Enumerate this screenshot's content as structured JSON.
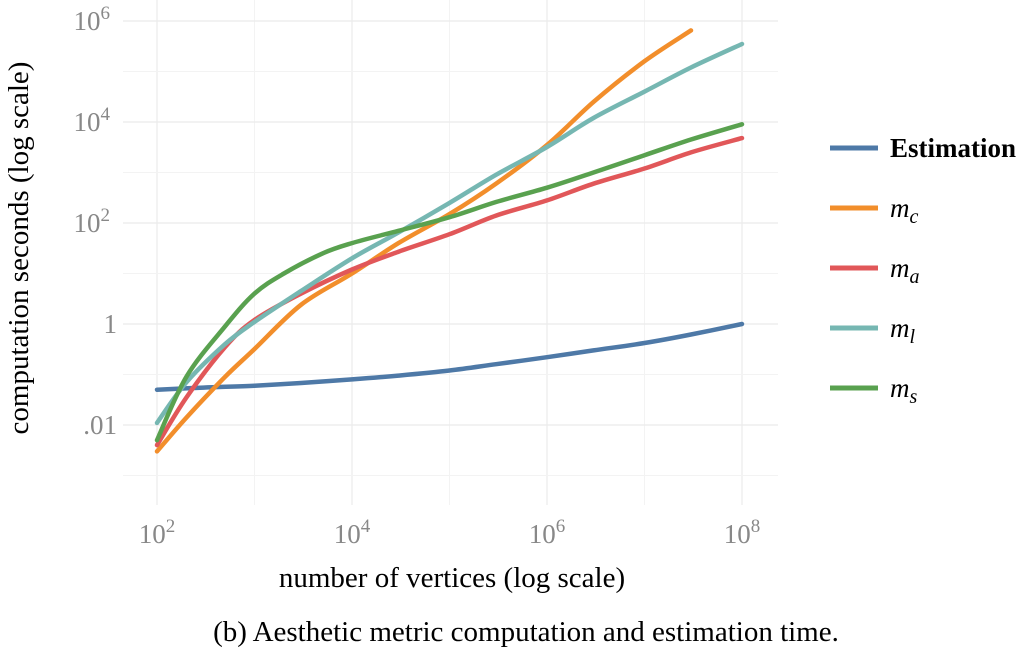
{
  "chart_data": {
    "type": "line",
    "xlabel": "number of vertices (log scale)",
    "ylabel": "computation seconds (log scale)",
    "caption": "(b) Aesthetic metric computation and estimation time.",
    "x_scale": "log",
    "y_scale": "log",
    "xlim": [
      100,
      100000000
    ],
    "ylim": [
      0.0001,
      1000000
    ],
    "grid": true,
    "legend_position": "right",
    "x_ticks": [
      {
        "value": 100,
        "base": "10",
        "exp": "2"
      },
      {
        "value": 10000,
        "base": "10",
        "exp": "4"
      },
      {
        "value": 1000000,
        "base": "10",
        "exp": "6"
      },
      {
        "value": 100000000,
        "base": "10",
        "exp": "8"
      }
    ],
    "y_ticks": [
      {
        "value": 0.01,
        "base": ".01",
        "exp": ""
      },
      {
        "value": 1,
        "base": "1",
        "exp": ""
      },
      {
        "value": 100,
        "base": "10",
        "exp": "2"
      },
      {
        "value": 10000,
        "base": "10",
        "exp": "4"
      },
      {
        "value": 1000000,
        "base": "10",
        "exp": "6"
      }
    ],
    "series": [
      {
        "name": "Estimation",
        "label_main": "Estimation",
        "label_sub": "",
        "color": "#4e79a7",
        "bold": true,
        "x": [
          100,
          300,
          1000,
          3000,
          10000,
          30000,
          100000,
          300000,
          1000000,
          3000000,
          10000000,
          30000000,
          100000000
        ],
        "y": [
          0.05,
          0.055,
          0.06,
          0.068,
          0.08,
          0.095,
          0.12,
          0.16,
          0.22,
          0.3,
          0.42,
          0.62,
          1.0
        ]
      },
      {
        "name": "m_c",
        "label_main": "m",
        "label_sub": "c",
        "color": "#f28e2b",
        "bold": false,
        "x": [
          100,
          200,
          500,
          1000,
          3000,
          10000,
          30000,
          100000,
          300000,
          1000000,
          3000000,
          10000000,
          30000000
        ],
        "y": [
          0.003,
          0.014,
          0.09,
          0.32,
          2.4,
          10,
          40,
          150,
          600,
          3500,
          25000,
          160000,
          650000
        ]
      },
      {
        "name": "m_a",
        "label_main": "m",
        "label_sub": "a",
        "color": "#e15759",
        "bold": false,
        "x": [
          100,
          200,
          500,
          1000,
          3000,
          10000,
          30000,
          100000,
          300000,
          1000000,
          3000000,
          10000000,
          30000000,
          100000000
        ],
        "y": [
          0.004,
          0.035,
          0.35,
          1.2,
          4,
          12,
          27,
          60,
          140,
          280,
          600,
          1200,
          2500,
          4800
        ]
      },
      {
        "name": "m_l",
        "label_main": "m",
        "label_sub": "l",
        "color": "#76b7b2",
        "bold": false,
        "x": [
          100,
          200,
          500,
          1000,
          3000,
          10000,
          30000,
          100000,
          300000,
          1000000,
          3000000,
          10000000,
          30000000,
          100000000
        ],
        "y": [
          0.011,
          0.07,
          0.4,
          1.1,
          4.5,
          20,
          65,
          250,
          900,
          3200,
          12000,
          40000,
          120000,
          350000
        ]
      },
      {
        "name": "m_s",
        "label_main": "m",
        "label_sub": "s",
        "color": "#59a14f",
        "bold": false,
        "x": [
          100,
          200,
          500,
          1000,
          2000,
          5000,
          10000,
          30000,
          100000,
          300000,
          1000000,
          3000000,
          10000000,
          30000000,
          100000000
        ],
        "y": [
          0.005,
          0.09,
          0.9,
          4,
          10,
          25,
          40,
          70,
          130,
          260,
          500,
          1000,
          2200,
          4500,
          9000
        ]
      }
    ]
  }
}
